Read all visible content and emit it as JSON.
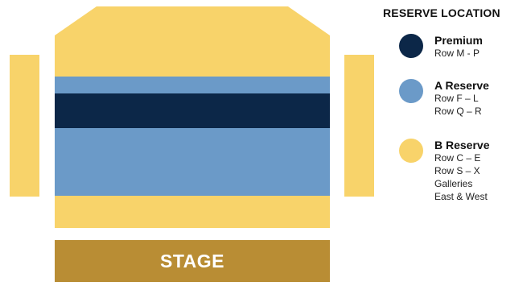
{
  "colors": {
    "premium": "#0c2748",
    "a_reserve": "#6b9ac8",
    "b_reserve": "#f8d36a",
    "stage": "#b98d34"
  },
  "stage": {
    "label": "STAGE"
  },
  "legend": {
    "title": "RESERVE LOCATION",
    "items": [
      {
        "name": "Premium",
        "lines": [
          "Row M - P"
        ]
      },
      {
        "name": "A Reserve",
        "lines": [
          "Row F – L",
          "Row Q – R"
        ]
      },
      {
        "name": "B Reserve",
        "lines": [
          "Row C – E",
          "Row S – X",
          "Galleries",
          "East & West"
        ]
      }
    ]
  }
}
